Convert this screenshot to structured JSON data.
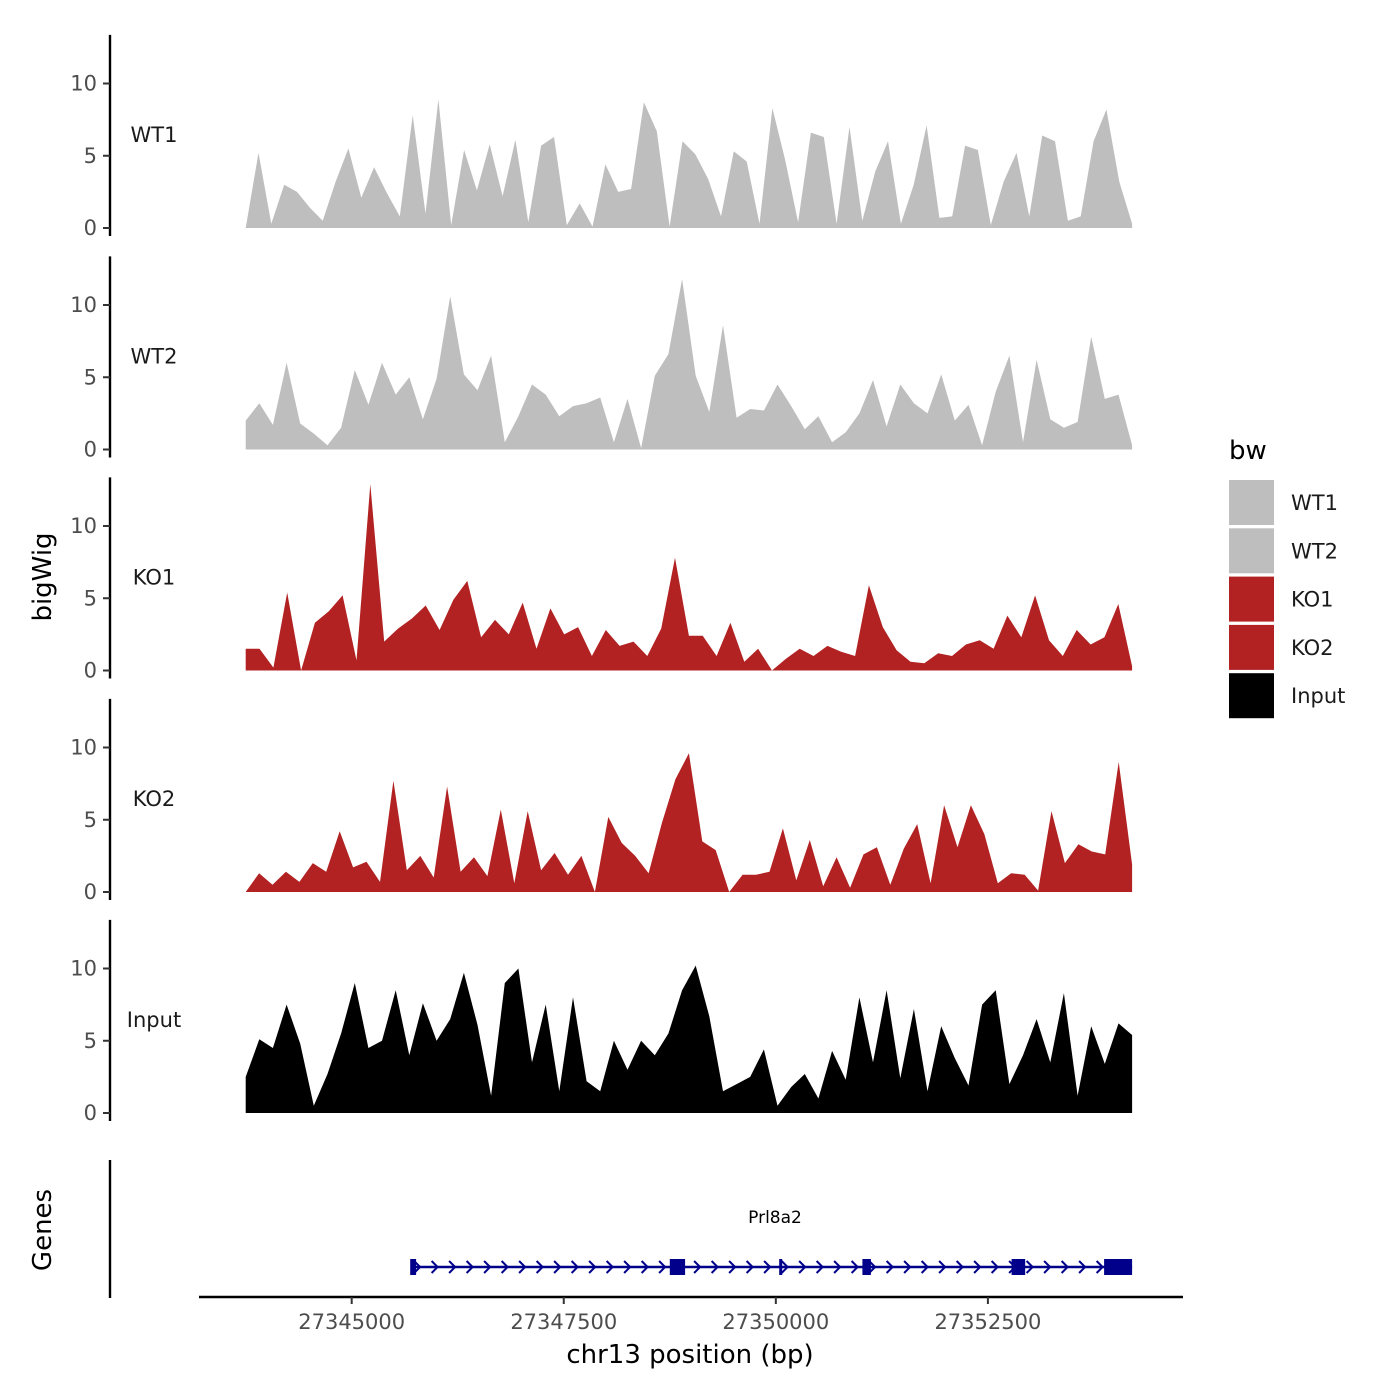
{
  "chart_data": {
    "type": "area",
    "y_axis_title": "bigWig",
    "genes_axis_title": "Genes",
    "x_axis_title": "chr13 position (bp)",
    "y_ticks": [
      "0",
      "5",
      "10"
    ],
    "ylim": [
      0,
      13.5
    ],
    "x_ticks": [
      "27345000",
      "27347500",
      "27350000",
      "27352500"
    ],
    "xlim": [
      27343200,
      27354800
    ],
    "data_range": [
      27343750,
      27354200
    ],
    "legend": {
      "title": "bw",
      "items": [
        {
          "label": "WT1",
          "color": "#bebebe"
        },
        {
          "label": "WT2",
          "color": "#bebebe"
        },
        {
          "label": "KO1",
          "color": "#b22222"
        },
        {
          "label": "KO2",
          "color": "#b22222"
        },
        {
          "label": "Input",
          "color": "#000000"
        }
      ]
    },
    "tracks": [
      {
        "name": "WT1",
        "color": "#bebebe",
        "values": [
          0,
          5.2,
          0.3,
          3.0,
          2.5,
          1.4,
          0.5,
          3.2,
          5.5,
          2.1,
          4.2,
          2.4,
          0.8,
          7.8,
          1.0,
          8.9,
          0.2,
          5.4,
          2.6,
          5.8,
          2.2,
          6.1,
          0.4,
          5.7,
          6.3,
          0.2,
          1.7,
          0.1,
          4.4,
          2.5,
          2.7,
          8.7,
          6.7,
          0.1,
          6.0,
          5.1,
          3.4,
          0.8,
          5.3,
          4.6,
          0.3,
          8.3,
          4.7,
          0.4,
          6.6,
          6.3,
          0.3,
          7.0,
          0.5,
          3.9,
          6.0,
          0.3,
          3.0,
          7.1,
          0.7,
          0.8,
          5.7,
          5.4,
          0.2,
          3.2,
          5.2,
          0.8,
          6.4,
          6.0,
          0.5,
          0.8,
          6.0,
          8.2,
          3.2,
          0.3
        ]
      },
      {
        "name": "WT2",
        "color": "#bebebe",
        "values": [
          2.0,
          3.2,
          1.7,
          6.0,
          1.8,
          1.1,
          0.3,
          1.5,
          5.5,
          3.1,
          6.0,
          3.8,
          5.0,
          2.1,
          4.9,
          10.6,
          5.2,
          4.1,
          6.5,
          0.5,
          2.3,
          4.5,
          3.8,
          2.3,
          3.0,
          3.2,
          3.6,
          0.5,
          3.5,
          0.1,
          5.1,
          6.6,
          11.8,
          5.1,
          2.6,
          8.6,
          2.2,
          2.8,
          2.7,
          4.5,
          3.0,
          1.4,
          2.3,
          0.5,
          1.2,
          2.5,
          4.8,
          1.6,
          4.5,
          3.2,
          2.5,
          5.2,
          2.0,
          3.1,
          0.3,
          4.0,
          6.5,
          0.5,
          6.2,
          2.1,
          1.5,
          1.9,
          7.8,
          3.5,
          3.8,
          0.3
        ]
      },
      {
        "name": "KO1",
        "color": "#b22222",
        "values": [
          1.5,
          1.5,
          0.2,
          5.4,
          0.0,
          3.3,
          4.1,
          5.2,
          0.7,
          12.9,
          2.0,
          2.9,
          3.6,
          4.5,
          2.8,
          4.9,
          6.2,
          2.3,
          3.5,
          2.5,
          4.7,
          1.5,
          4.3,
          2.5,
          3.0,
          1.0,
          2.8,
          1.7,
          2.0,
          1.0,
          2.9,
          7.8,
          2.4,
          2.4,
          1.0,
          3.3,
          0.6,
          1.5,
          0.0,
          0.8,
          1.5,
          1.0,
          1.7,
          1.3,
          1.0,
          5.9,
          3.0,
          1.4,
          0.6,
          0.5,
          1.2,
          1.0,
          1.8,
          2.1,
          1.5,
          3.8,
          2.3,
          5.2,
          2.1,
          1.0,
          2.8,
          1.8,
          2.3,
          4.6,
          0.3
        ]
      },
      {
        "name": "KO2",
        "color": "#b22222",
        "values": [
          0.0,
          1.3,
          0.5,
          1.4,
          0.7,
          2.0,
          1.4,
          4.2,
          1.7,
          2.1,
          0.7,
          7.7,
          1.5,
          2.5,
          1.0,
          7.3,
          1.4,
          2.4,
          1.1,
          5.7,
          0.6,
          5.6,
          1.5,
          2.7,
          1.2,
          2.5,
          0.0,
          5.2,
          3.4,
          2.5,
          1.3,
          4.8,
          7.8,
          9.6,
          3.5,
          2.9,
          0.0,
          1.2,
          1.2,
          1.4,
          4.4,
          0.8,
          3.6,
          0.4,
          2.4,
          0.3,
          2.6,
          3.1,
          0.5,
          3.0,
          4.7,
          0.6,
          6.0,
          3.1,
          6.0,
          4.0,
          0.6,
          1.3,
          1.2,
          0.1,
          5.6,
          2.0,
          3.3,
          2.8,
          2.6,
          9.0,
          1.9
        ]
      },
      {
        "name": "Input",
        "color": "#000000",
        "values": [
          2.5,
          5.1,
          4.5,
          7.5,
          4.8,
          0.5,
          2.7,
          5.5,
          9.0,
          4.5,
          5.0,
          8.5,
          4.0,
          7.6,
          5.0,
          6.5,
          9.7,
          6.1,
          1.2,
          9.0,
          10.0,
          3.5,
          7.5,
          1.5,
          8.0,
          2.2,
          1.5,
          5.0,
          3.0,
          5.0,
          4.0,
          5.5,
          8.5,
          10.2,
          6.7,
          1.5,
          2.0,
          2.5,
          4.4,
          0.5,
          1.8,
          2.7,
          1.0,
          4.3,
          2.3,
          8.0,
          3.5,
          8.5,
          2.4,
          7.2,
          1.5,
          6.0,
          3.8,
          1.9,
          7.5,
          8.5,
          2.0,
          4.0,
          6.5,
          3.5,
          8.3,
          1.2,
          6.0,
          3.4,
          6.2,
          5.4
        ]
      }
    ],
    "gene": {
      "name": "Prl8a2",
      "start": 27345700,
      "end": 27354200,
      "strand": "+",
      "exons": [
        [
          27345690,
          27345760
        ],
        [
          27348750,
          27348930
        ],
        [
          27350040,
          27350060
        ],
        [
          27351020,
          27351120
        ],
        [
          27352780,
          27352940
        ],
        [
          27353870,
          27354200
        ]
      ]
    }
  }
}
